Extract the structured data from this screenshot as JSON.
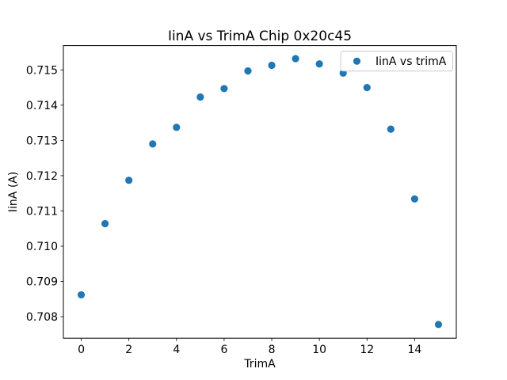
{
  "chart_data": {
    "type": "scatter",
    "title": "IinA vs TrimA Chip 0x20c45",
    "xlabel": "TrimA",
    "ylabel": "IinA (A)",
    "legend": {
      "position": "upper right",
      "entries": [
        {
          "label": "IinA vs trimA",
          "marker": "circle",
          "color": "#1f77b4"
        }
      ]
    },
    "marker_color": "#1f77b4",
    "background_color": "#ffffff",
    "spine_color": "#000000",
    "legend_border_color": "#cccccc",
    "grid": false,
    "x": [
      0,
      1,
      2,
      3,
      4,
      5,
      6,
      7,
      8,
      9,
      10,
      11,
      12,
      13,
      14,
      15
    ],
    "y": [
      0.70862,
      0.71064,
      0.71187,
      0.7129,
      0.71337,
      0.71423,
      0.71447,
      0.71497,
      0.71513,
      0.71532,
      0.71517,
      0.71491,
      0.7145,
      0.71332,
      0.71134,
      0.70778
    ],
    "xlim": [
      -0.75,
      15.75
    ],
    "ylim": [
      0.70739,
      0.71569
    ],
    "xticks": [
      0,
      2,
      4,
      6,
      8,
      10,
      12,
      14
    ],
    "yticks": [
      0.708,
      0.709,
      0.71,
      0.711,
      0.712,
      0.713,
      0.714,
      0.715
    ],
    "ytick_decimals": 3
  }
}
